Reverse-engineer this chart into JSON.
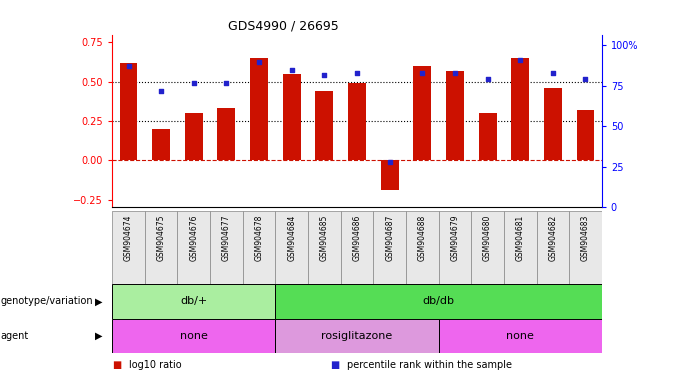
{
  "title": "GDS4990 / 26695",
  "samples": [
    "GSM904674",
    "GSM904675",
    "GSM904676",
    "GSM904677",
    "GSM904678",
    "GSM904684",
    "GSM904685",
    "GSM904686",
    "GSM904687",
    "GSM904688",
    "GSM904679",
    "GSM904680",
    "GSM904681",
    "GSM904682",
    "GSM904683"
  ],
  "log10_ratio": [
    0.62,
    0.2,
    0.3,
    0.33,
    0.65,
    0.55,
    0.44,
    0.49,
    -0.19,
    0.6,
    0.57,
    0.3,
    0.65,
    0.46,
    0.32
  ],
  "percentile_rank": [
    87,
    72,
    77,
    77,
    90,
    85,
    82,
    83,
    28,
    83,
    83,
    79,
    91,
    83,
    79
  ],
  "bar_color": "#cc1100",
  "dot_color": "#2222cc",
  "dotted_line_y": [
    0.25,
    0.5
  ],
  "ylim_left": [
    -0.3,
    0.8
  ],
  "ylim_right": [
    0,
    106.67
  ],
  "right_ticks": [
    0,
    25,
    50,
    75,
    100
  ],
  "right_tick_labels": [
    "0",
    "25",
    "50",
    "75",
    "100%"
  ],
  "left_ticks": [
    -0.25,
    0.0,
    0.25,
    0.5,
    0.75
  ],
  "genotype_groups": [
    {
      "label": "db/+",
      "start": 0,
      "end": 5,
      "color": "#aaeea0"
    },
    {
      "label": "db/db",
      "start": 5,
      "end": 15,
      "color": "#55dd55"
    }
  ],
  "agent_groups": [
    {
      "label": "none",
      "start": 0,
      "end": 5,
      "color": "#ee66ee"
    },
    {
      "label": "rosiglitazone",
      "start": 5,
      "end": 10,
      "color": "#dd99dd"
    },
    {
      "label": "none",
      "start": 10,
      "end": 15,
      "color": "#ee66ee"
    }
  ],
  "legend_items": [
    {
      "color": "#cc1100",
      "label": "log10 ratio"
    },
    {
      "color": "#2222cc",
      "label": "percentile rank within the sample"
    }
  ],
  "background_color": "#ffffff"
}
